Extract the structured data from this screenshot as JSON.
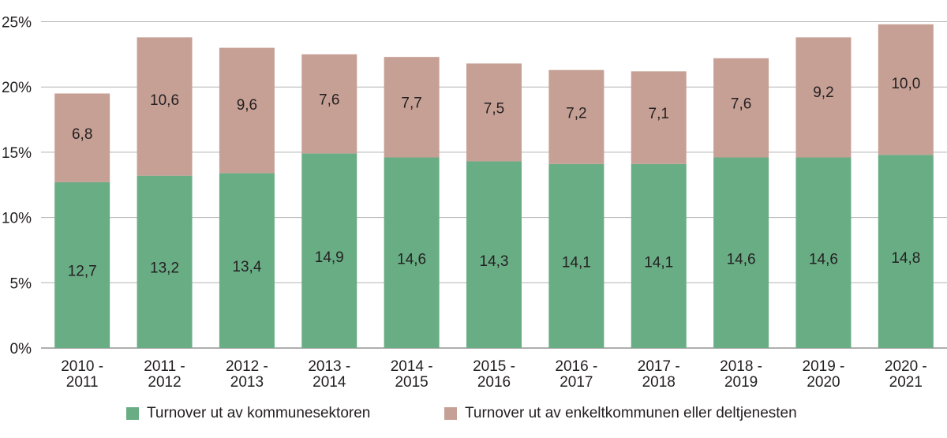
{
  "chart_data": {
    "type": "bar",
    "stacked": true,
    "categories": [
      [
        "2010 -",
        "2011"
      ],
      [
        "2011 -",
        "2012"
      ],
      [
        "2012 -",
        "2013"
      ],
      [
        "2013 -",
        "2014"
      ],
      [
        "2014 -",
        "2015"
      ],
      [
        "2015 -",
        "2016"
      ],
      [
        "2016 -",
        "2017"
      ],
      [
        "2017 -",
        "2018"
      ],
      [
        "2018 -",
        "2019"
      ],
      [
        "2019 -",
        "2020"
      ],
      [
        "2020 -",
        "2021"
      ]
    ],
    "series": [
      {
        "name": "Turnover ut av kommunesektoren",
        "color": "#69ad85",
        "values": [
          12.7,
          13.2,
          13.4,
          14.9,
          14.6,
          14.3,
          14.1,
          14.1,
          14.6,
          14.6,
          14.8
        ],
        "labels": [
          "12,7",
          "13,2",
          "13,4",
          "14,9",
          "14,6",
          "14,3",
          "14,1",
          "14,1",
          "14,6",
          "14,6",
          "14,8"
        ]
      },
      {
        "name": "Turnover ut av enkeltkommunen eller deltjenesten",
        "color": "#c6a095",
        "values": [
          6.8,
          10.6,
          9.6,
          7.6,
          7.7,
          7.5,
          7.2,
          7.1,
          7.6,
          9.2,
          10.0
        ],
        "labels": [
          "6,8",
          "10,6",
          "9,6",
          "7,6",
          "7,7",
          "7,5",
          "7,2",
          "7,1",
          "7,6",
          "9,2",
          "10,0"
        ]
      }
    ],
    "ylim": [
      0,
      25
    ],
    "yticks": [
      "0%",
      "5%",
      "10%",
      "15%",
      "20%",
      "25%"
    ],
    "grid": true,
    "legend_position": "bottom"
  }
}
